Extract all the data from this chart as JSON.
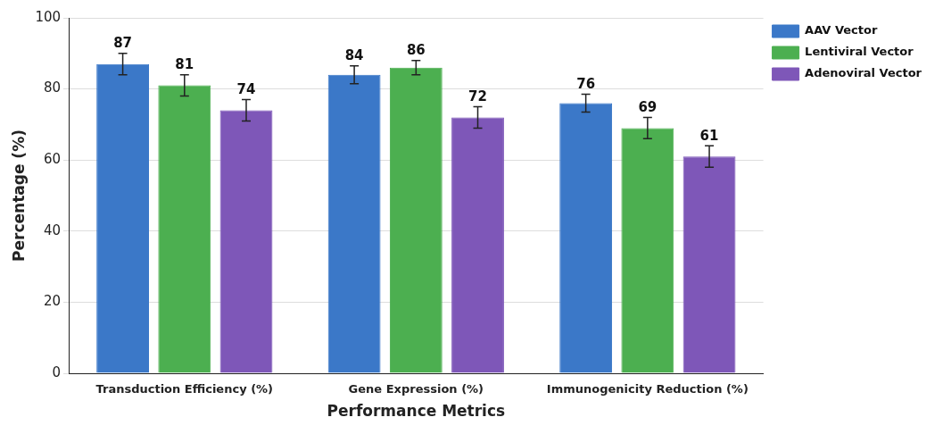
{
  "chart_data": {
    "type": "bar",
    "xlabel": "Performance Metrics",
    "ylabel": "Percentage (%)",
    "categories": [
      "Transduction Efficiency (%)",
      "Gene Expression (%)",
      "Immunogenicity Reduction (%)"
    ],
    "series": [
      {
        "name": "AAV Vector",
        "color": "#3b78c8",
        "values": [
          87,
          84,
          76
        ],
        "errors": [
          3,
          2.5,
          2.5
        ]
      },
      {
        "name": "Lentiviral Vector",
        "color": "#4caf50",
        "values": [
          81,
          86,
          69
        ],
        "errors": [
          3,
          2,
          3
        ]
      },
      {
        "name": "Adenoviral Vector",
        "color": "#7e57b8",
        "values": [
          74,
          72,
          61
        ],
        "errors": [
          3,
          3,
          3
        ]
      }
    ],
    "ylim": [
      0,
      100
    ],
    "yticks": [
      0,
      20,
      40,
      60,
      80,
      100
    ],
    "grid": "y",
    "legend": "top right",
    "data_labels": true
  }
}
